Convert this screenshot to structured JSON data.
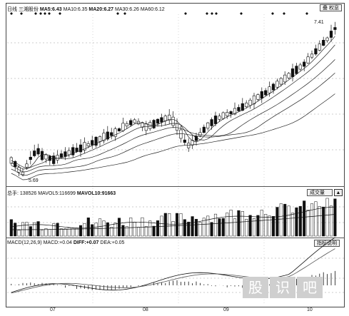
{
  "price_panel": {
    "label_prefix": "日线",
    "stock_name": "三湘股份",
    "ma5_label": "MA5:",
    "ma5_value": "6.43",
    "ma10_label": "MA10:",
    "ma10_value": "6.35",
    "ma20_label": "MA20:",
    "ma20_value": "6.27",
    "ma30_label": "MA30:",
    "ma30_value": "6.26",
    "ma60_label": "MA60:",
    "ma60_value": "6.12",
    "high_marker": "7.41",
    "low_marker": "5.69",
    "corner_button_label": "叠 权息"
  },
  "volume_panel": {
    "vol_label": "总手:",
    "vol_value": "138526",
    "mavol5_label": "MAVOL5:",
    "mavol5_value": "116699",
    "mavol10_label": "MAVOL10:",
    "mavol10_value": "91663",
    "selector_label": "成交量"
  },
  "macd_panel": {
    "title": "MACD(12,26,9)",
    "macd_label": "MACD:",
    "macd_value": "+0.04",
    "diff_label": "DIFF:",
    "diff_value": "+0.07",
    "dea_label": "DEA:",
    "dea_value": "+0.05",
    "help_button_label": "指标说明"
  },
  "x_axis": {
    "months": [
      "07",
      "08",
      "09",
      "10"
    ]
  },
  "watermark": [
    "股",
    "识",
    "吧"
  ],
  "colors": {
    "up_candle": "#ffffff",
    "down_candle": "#111111",
    "grid": "#9a9a9a",
    "ma_line": "#222222"
  }
}
